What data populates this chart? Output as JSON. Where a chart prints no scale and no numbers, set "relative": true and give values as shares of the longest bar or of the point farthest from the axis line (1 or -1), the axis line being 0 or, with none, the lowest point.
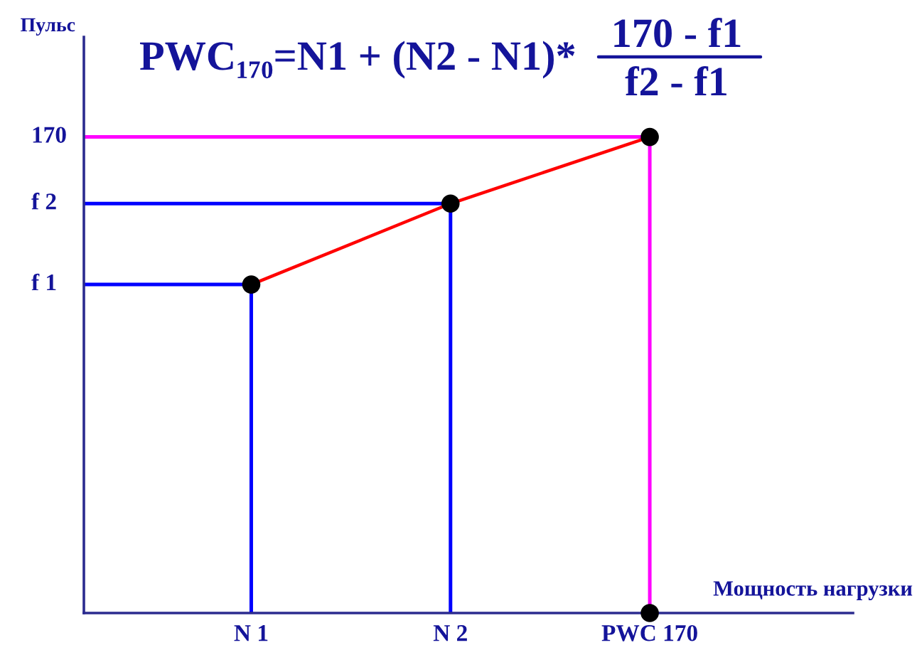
{
  "chart_data": {
    "type": "line",
    "relative": true,
    "title": "PWC₁₇₀=N1 + (N2 - N1)*",
    "annotations": [
      "170 - f1",
      "f2 - f1",
      "f 1",
      "f 2",
      "170",
      "Пульс"
    ],
    "xlabel": "Мощность нагрузки",
    "categories": [
      "N 1",
      "N 2",
      "PWC 170"
    ],
    "series": [
      {
        "color": "#ff0000",
        "values": [
          0.69,
          0.86,
          1
        ]
      },
      {
        "type": "scatter",
        "color": "#000000",
        "marker": "circle",
        "values": [
          0.69,
          0.86,
          1
        ]
      },
      {
        "type": "scatter",
        "color": "#000000",
        "marker": "circle",
        "values": [
          null,
          null,
          0
        ]
      }
    ],
    "ref_lines": [
      {
        "axis": "y",
        "value": 0.69,
        "color": "#0000ff"
      },
      {
        "axis": "y",
        "value": 0.86,
        "color": "#0000ff"
      },
      {
        "axis": "y",
        "value": 1,
        "color": "#ff00ff"
      }
    ]
  }
}
